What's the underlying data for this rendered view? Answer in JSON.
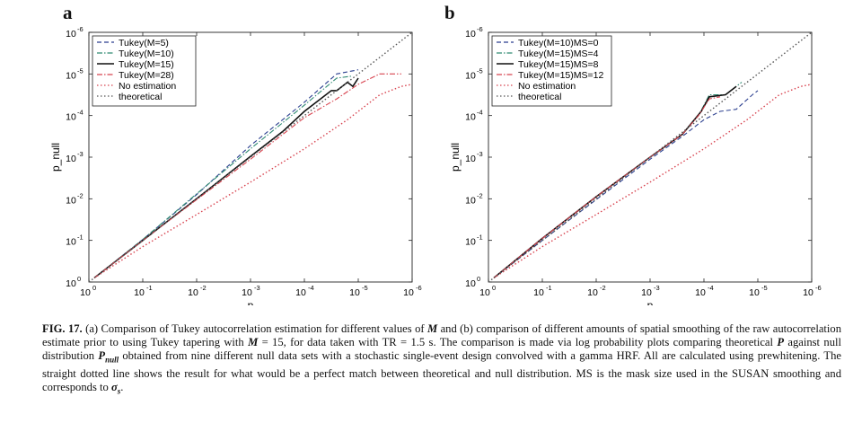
{
  "figure": {
    "panels": [
      {
        "letter": "a"
      },
      {
        "letter": "b"
      }
    ],
    "caption": {
      "label": "FIG. 17.",
      "segments": [
        {
          "t": "(a) Comparison of Tukey autocorrelation estimation for different values of "
        },
        {
          "t": "M",
          "v": true
        },
        {
          "t": " and (b) comparison of different amounts of spatial smoothing of the raw autocorrelation estimate prior to using Tukey tapering with "
        },
        {
          "t": "M",
          "v": true
        },
        {
          "t": " = 15, for data taken with TR = 1.5 s. The comparison is made via log probability plots comparing theoretical "
        },
        {
          "t": "P",
          "v": true
        },
        {
          "t": " against null distribution "
        },
        {
          "t": "P",
          "v": true
        },
        {
          "t": "null",
          "v": true,
          "sub": true
        },
        {
          "t": " obtained from nine different null data sets with a stochastic single-event design convolved with a gamma HRF. All are calculated using prewhitening. The straight dotted line shows the result for what would be a perfect match between theoretical and null distribution. MS is the mask size used in the SUSAN smoothing and corresponds to "
        },
        {
          "t": "σ",
          "v": true
        },
        {
          "t": "s",
          "v": true,
          "sub": true
        },
        {
          "t": "."
        }
      ]
    }
  },
  "chart_data": [
    {
      "type": "line",
      "panel": "a",
      "xlabel": "p",
      "ylabel": "p_null",
      "xscale": "log-reversed",
      "yscale": "log-reversed",
      "xlim": [
        1,
        1e-06
      ],
      "ylim": [
        1,
        1e-06
      ],
      "xtick_exponents": [
        0,
        -1,
        -2,
        -3,
        -4,
        -5,
        -6
      ],
      "ytick_exponents": [
        0,
        -1,
        -2,
        -3,
        -4,
        -5,
        -6
      ],
      "legend_position": "top-left",
      "series": [
        {
          "name": "Tukey(M=5)",
          "style": "dashed",
          "color": "#2b3f8f",
          "points": [
            [
              -0.1,
              -0.1
            ],
            [
              -1,
              -1.02
            ],
            [
              -2,
              -2.1
            ],
            [
              -3,
              -3.28
            ],
            [
              -4,
              -4.32
            ],
            [
              -4.6,
              -5.0
            ],
            [
              -5.0,
              -5.1
            ]
          ]
        },
        {
          "name": "Tukey(M=10)",
          "style": "dashdot",
          "color": "#2f8a72",
          "points": [
            [
              -0.1,
              -0.1
            ],
            [
              -1,
              -1.02
            ],
            [
              -2,
              -2.12
            ],
            [
              -3,
              -3.2
            ],
            [
              -4,
              -4.25
            ],
            [
              -4.6,
              -4.9
            ],
            [
              -4.9,
              -4.95
            ]
          ]
        },
        {
          "name": "Tukey(M=15)",
          "style": "solid",
          "color": "#111111",
          "points": [
            [
              -0.1,
              -0.1
            ],
            [
              -1,
              -1.0
            ],
            [
              -2,
              -2.0
            ],
            [
              -3,
              -3.02
            ],
            [
              -3.6,
              -3.62
            ],
            [
              -4,
              -4.1
            ],
            [
              -4.2,
              -4.3
            ],
            [
              -4.5,
              -4.6
            ],
            [
              -4.6,
              -4.6
            ],
            [
              -4.8,
              -4.8
            ],
            [
              -4.9,
              -4.7
            ],
            [
              -5.0,
              -4.9
            ]
          ]
        },
        {
          "name": "Tukey(M=28)",
          "style": "dashdot",
          "color": "#d8434f",
          "points": [
            [
              -0.1,
              -0.1
            ],
            [
              -1,
              -1.0
            ],
            [
              -2,
              -1.98
            ],
            [
              -3,
              -2.95
            ],
            [
              -4,
              -3.95
            ],
            [
              -4.6,
              -4.4
            ],
            [
              -5.0,
              -4.75
            ],
            [
              -5.4,
              -5.0
            ],
            [
              -5.8,
              -5.0
            ]
          ]
        },
        {
          "name": "No estimation",
          "style": "dotted",
          "color": "#d8434f",
          "points": [
            [
              -0.1,
              -0.1
            ],
            [
              -1,
              -0.85
            ],
            [
              -2,
              -1.62
            ],
            [
              -3,
              -2.4
            ],
            [
              -4,
              -3.2
            ],
            [
              -4.8,
              -3.9
            ],
            [
              -5.4,
              -4.5
            ],
            [
              -5.8,
              -4.7
            ],
            [
              -6,
              -4.75
            ]
          ]
        },
        {
          "name": "theoretical",
          "style": "dotted",
          "color": "#555555",
          "points": [
            [
              0,
              0
            ],
            [
              -6,
              -6
            ]
          ]
        }
      ]
    },
    {
      "type": "line",
      "panel": "b",
      "xlabel": "p",
      "ylabel": "p_null",
      "xscale": "log-reversed",
      "yscale": "log-reversed",
      "xlim": [
        1,
        1e-06
      ],
      "ylim": [
        1,
        1e-06
      ],
      "xtick_exponents": [
        0,
        -1,
        -2,
        -3,
        -4,
        -5,
        -6
      ],
      "ytick_exponents": [
        0,
        -1,
        -2,
        -3,
        -4,
        -5,
        -6
      ],
      "legend_position": "top-left",
      "series": [
        {
          "name": "Tukey(M=10)MS=0",
          "style": "dashed",
          "color": "#2b3f8f",
          "points": [
            [
              -0.1,
              -0.1
            ],
            [
              -1,
              -1.0
            ],
            [
              -2,
              -1.98
            ],
            [
              -3,
              -2.95
            ],
            [
              -3.6,
              -3.5
            ],
            [
              -4,
              -3.9
            ],
            [
              -4.3,
              -4.1
            ],
            [
              -4.6,
              -4.15
            ],
            [
              -4.9,
              -4.5
            ],
            [
              -5.0,
              -4.6
            ]
          ]
        },
        {
          "name": "Tukey(M=15)MS=4",
          "style": "dashdot",
          "color": "#2f8a72",
          "points": [
            [
              -0.1,
              -0.1
            ],
            [
              -1,
              -1.05
            ],
            [
              -2,
              -2.05
            ],
            [
              -3,
              -3.0
            ],
            [
              -3.6,
              -3.55
            ],
            [
              -3.9,
              -4.0
            ],
            [
              -4.1,
              -4.5
            ],
            [
              -4.4,
              -4.5
            ],
            [
              -4.7,
              -4.8
            ]
          ]
        },
        {
          "name": "Tukey(M=15)MS=8",
          "style": "solid",
          "color": "#111111",
          "points": [
            [
              -0.1,
              -0.1
            ],
            [
              -1,
              -1.05
            ],
            [
              -2,
              -2.05
            ],
            [
              -3,
              -3.0
            ],
            [
              -3.6,
              -3.55
            ],
            [
              -3.95,
              -4.1
            ],
            [
              -4.1,
              -4.45
            ],
            [
              -4.4,
              -4.5
            ],
            [
              -4.6,
              -4.7
            ]
          ]
        },
        {
          "name": "Tukey(M=15)MS=12",
          "style": "dashdot",
          "color": "#d8434f",
          "points": [
            [
              -0.1,
              -0.1
            ],
            [
              -1,
              -1.05
            ],
            [
              -2,
              -2.05
            ],
            [
              -3,
              -3.0
            ],
            [
              -3.6,
              -3.55
            ],
            [
              -3.9,
              -4.0
            ],
            [
              -4.1,
              -4.4
            ],
            [
              -4.3,
              -4.45
            ]
          ]
        },
        {
          "name": "No estimation",
          "style": "dotted",
          "color": "#d8434f",
          "points": [
            [
              -0.1,
              -0.1
            ],
            [
              -1,
              -0.85
            ],
            [
              -2,
              -1.62
            ],
            [
              -3,
              -2.4
            ],
            [
              -4,
              -3.2
            ],
            [
              -4.8,
              -3.9
            ],
            [
              -5.4,
              -4.5
            ],
            [
              -5.8,
              -4.7
            ],
            [
              -6,
              -4.75
            ]
          ]
        },
        {
          "name": "theoretical",
          "style": "dotted",
          "color": "#555555",
          "points": [
            [
              0,
              0
            ],
            [
              -6,
              -6
            ]
          ]
        }
      ]
    }
  ]
}
